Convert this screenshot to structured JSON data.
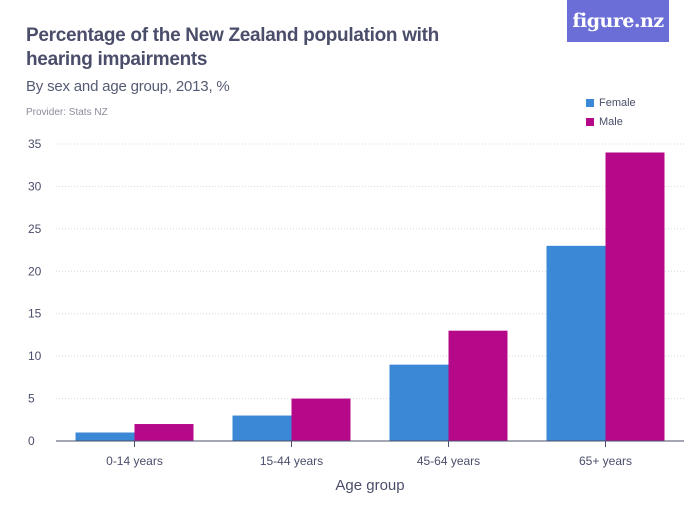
{
  "header": {
    "title": "Percentage of the New Zealand population with hearing impairments",
    "subtitle": "By sex and age group, 2013, %",
    "provider": "Provider: Stats NZ",
    "brand": "figure.nz"
  },
  "colors": {
    "female": "#3a88d6",
    "male": "#b5098a",
    "brand": "#6a6ed6"
  },
  "chart_data": {
    "type": "bar",
    "title": "Percentage of the New Zealand population with hearing impairments",
    "subtitle": "By sex and age group, 2013, %",
    "xlabel": "Age group",
    "ylabel": "",
    "categories": [
      "0-14 years",
      "15-44 years",
      "45-64 years",
      "65+ years"
    ],
    "series": [
      {
        "name": "Female",
        "values": [
          1,
          3,
          9,
          23
        ]
      },
      {
        "name": "Male",
        "values": [
          2,
          5,
          13,
          34
        ]
      }
    ],
    "ylim": [
      0,
      35
    ],
    "yticks": [
      0,
      5,
      10,
      15,
      20,
      25,
      30,
      35
    ],
    "grid": true,
    "legend": "top-right"
  }
}
